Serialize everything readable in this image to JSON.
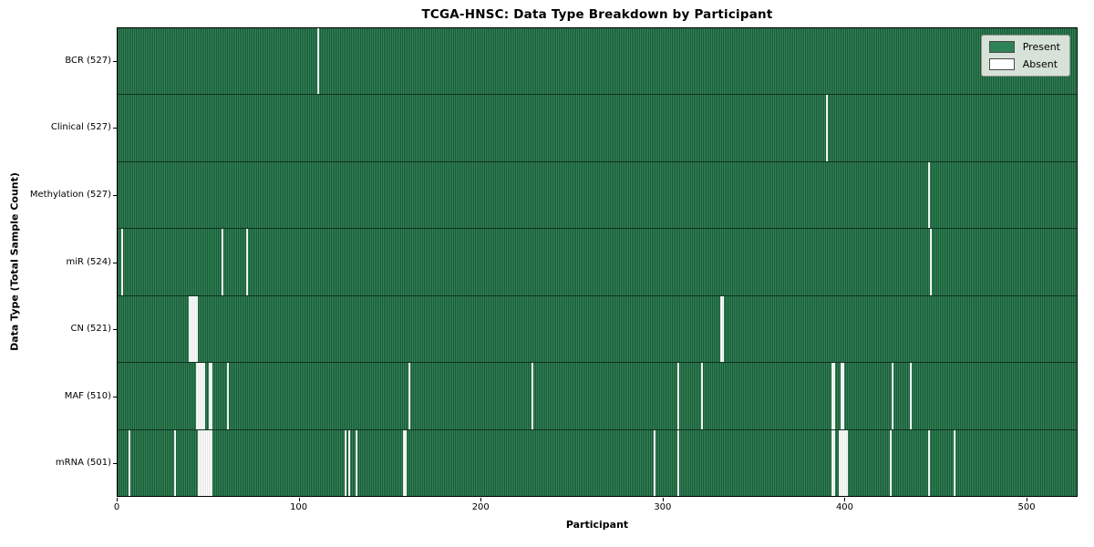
{
  "figure": {
    "title": "TCGA-HNSC: Data Type Breakdown by Participant",
    "xlabel": "Participant",
    "ylabel": "Data Type (Total Sample Count)",
    "legend": {
      "present_label": "Present",
      "absent_label": "Absent"
    },
    "colors": {
      "present": "#2e8456",
      "present_edge": "#1e5838",
      "absent": "#ffffff",
      "legend_bg": "#e6ebe4",
      "axis": "#000000"
    }
  },
  "chart_data": {
    "type": "heatmap",
    "title": "TCGA-HNSC: Data Type Breakdown by Participant",
    "xlabel": "Participant",
    "ylabel": "Data Type (Total Sample Count)",
    "legend_entries": [
      "Present",
      "Absent"
    ],
    "legend_position": "upper right",
    "n_participants": 528,
    "xlim": [
      0,
      528
    ],
    "x_ticks": [
      0,
      100,
      200,
      300,
      400,
      500
    ],
    "rows": [
      {
        "data_type": "BCR",
        "label": "BCR (527)",
        "present_count": 527,
        "absent_participants": [
          110
        ]
      },
      {
        "data_type": "Clinical",
        "label": "Clinical (527)",
        "present_count": 527,
        "absent_participants": [
          390
        ]
      },
      {
        "data_type": "Methylation",
        "label": "Methylation (527)",
        "present_count": 527,
        "absent_participants": [
          446
        ]
      },
      {
        "data_type": "miR",
        "label": "miR (524)",
        "present_count": 524,
        "absent_participants": [
          2,
          57,
          71,
          447
        ]
      },
      {
        "data_type": "CN",
        "label": "CN (521)",
        "present_count": 521,
        "absent_participants": [
          39,
          40,
          41,
          42,
          43,
          332,
          333
        ]
      },
      {
        "data_type": "MAF",
        "label": "MAF (510)",
        "present_count": 510,
        "absent_participants": [
          43,
          44,
          45,
          46,
          47,
          50,
          51,
          60,
          160,
          228,
          308,
          321,
          393,
          394,
          398,
          399,
          426,
          436
        ]
      },
      {
        "data_type": "mRNA",
        "label": "mRNA (501)",
        "present_count": 501,
        "absent_participants": [
          6,
          31,
          44,
          45,
          46,
          47,
          48,
          49,
          50,
          51,
          125,
          127,
          131,
          157,
          158,
          295,
          308,
          393,
          394,
          397,
          398,
          399,
          400,
          401,
          425,
          446,
          460
        ]
      }
    ]
  }
}
